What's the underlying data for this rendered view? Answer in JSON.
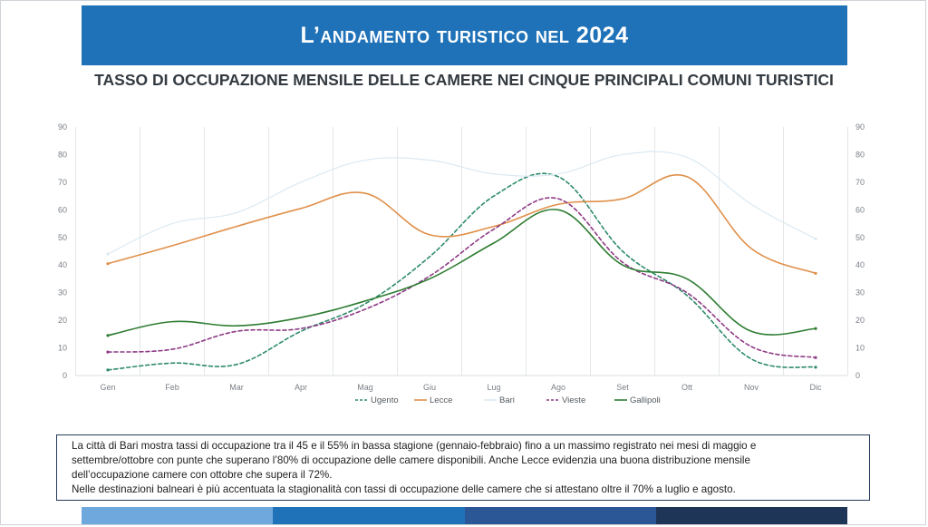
{
  "header": {
    "title": "L’andamento turistico nel 2024"
  },
  "chart_data": {
    "type": "line",
    "title": "TASSO DI OCCUPAZIONE MENSILE DELLE CAMERE NEI CINQUE PRINCIPALI COMUNI TURISTICI",
    "categories": [
      "Gen",
      "Feb",
      "Mar",
      "Apr",
      "Mag",
      "Giu",
      "Lug",
      "Ago",
      "Set",
      "Ott",
      "Nov",
      "Dic"
    ],
    "ylim": [
      0,
      90
    ],
    "yticks": [
      0,
      10,
      20,
      30,
      40,
      50,
      60,
      70,
      80,
      90
    ],
    "grid": "vertical",
    "legend_position": "bottom",
    "series": [
      {
        "name": "Ugento",
        "color": "#2e8b6a",
        "style": "dashed",
        "values": [
          2,
          4.5,
          4,
          16,
          26,
          43,
          65,
          72,
          45,
          29,
          6,
          3
        ]
      },
      {
        "name": "Lecce",
        "color": "#e0904a",
        "style": "solid",
        "values": [
          40.5,
          47,
          54,
          60.5,
          66,
          51,
          54,
          62,
          64,
          72,
          46,
          37
        ]
      },
      {
        "name": "Bari",
        "color": "#dbe9f2",
        "style": "solid-thin",
        "values": [
          44,
          55,
          59,
          70,
          78,
          78,
          73,
          73,
          80,
          79,
          62,
          49.5
        ]
      },
      {
        "name": "Vieste",
        "color": "#8e3b86",
        "style": "dashed",
        "values": [
          8.5,
          9.5,
          16,
          17,
          24,
          36,
          53,
          64,
          41,
          30,
          10.5,
          6.5
        ]
      },
      {
        "name": "Gallipoli",
        "color": "#2e7d32",
        "style": "solid",
        "values": [
          14.5,
          19.5,
          18,
          21,
          27,
          35,
          48,
          60,
          40,
          35,
          16,
          17
        ]
      }
    ]
  },
  "note": {
    "lines": [
      "La città di Bari mostra tassi di occupazione tra il 45 e il 55% in bassa stagione (gennaio-febbraio) fino a un massimo registrato nei mesi di maggio e",
      "settembre/ottobre con punte che superano l’80% di occupazione delle camere disponibili. Anche Lecce evidenzia una buona distribuzione mensile",
      "dell’occupazione camere con ottobre che supera il 72%.",
      "Nelle destinazioni balneari è più accentuata la stagionalità con tassi di occupazione delle camere che si attestano oltre il 70% a luglio e agosto."
    ]
  },
  "footer": {
    "colors": [
      "#6fa8dc",
      "#1f72b8",
      "#2b5797",
      "#1f3557"
    ]
  }
}
